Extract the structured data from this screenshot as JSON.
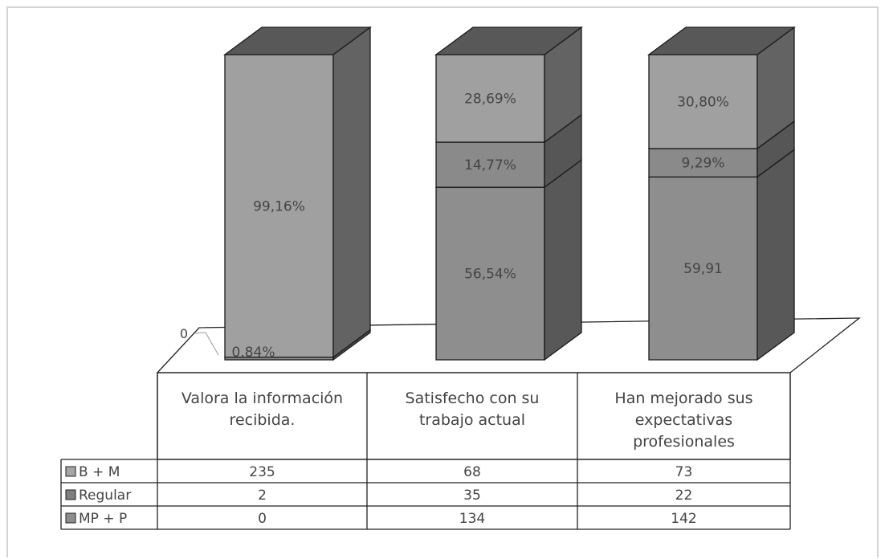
{
  "chart_data": {
    "type": "bar",
    "stacked": true,
    "three_d": true,
    "categories": [
      [
        "Valora la información",
        "recibida."
      ],
      [
        "Satisfecho con su",
        "trabajo actual"
      ],
      [
        "Han mejorado sus",
        "expectativas",
        "profesionales"
      ]
    ],
    "series": [
      {
        "name": "B + M",
        "values": [
          235,
          68,
          73
        ],
        "color": "#a0a0a0",
        "swatch": "#a6a6a6"
      },
      {
        "name": "Regular",
        "values": [
          2,
          35,
          22
        ],
        "color": "#8a8a8a",
        "swatch": "#7f7f7f"
      },
      {
        "name": "MP + P",
        "values": [
          0,
          134,
          142
        ],
        "color": "#8e8e8e",
        "swatch": "#8e8e8e"
      }
    ],
    "data_labels": [
      [
        "99,16%",
        "0,84%",
        ""
      ],
      [
        "28,69%",
        "14,77%",
        "56,54%"
      ],
      [
        "30,80%",
        "9,29%",
        "59,91"
      ]
    ],
    "axis_tick": "0",
    "legend": "data-table",
    "grid": false
  }
}
